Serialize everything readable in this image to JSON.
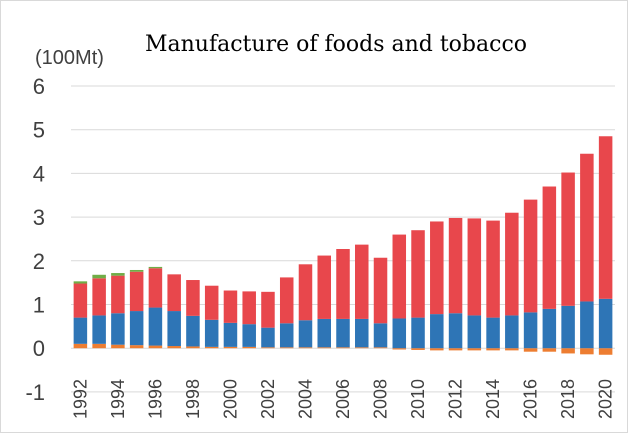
{
  "chart_data": {
    "type": "bar",
    "stacked": true,
    "title": "Manufacture of foods and tobacco",
    "unit_label": "(100Mt)",
    "xlabel": "",
    "ylabel": "",
    "ylim": [
      -1,
      6
    ],
    "yticks": [
      "6",
      "5",
      "4",
      "3",
      "2",
      "1",
      "0",
      "-1"
    ],
    "ytick_values": [
      6,
      5,
      4,
      3,
      2,
      1,
      0,
      -1
    ],
    "grid": true,
    "legend": "none",
    "categories": [
      "1992",
      "1993",
      "1994",
      "1995",
      "1996",
      "1997",
      "1998",
      "1999",
      "2000",
      "2001",
      "2002",
      "2003",
      "2004",
      "2005",
      "2006",
      "2007",
      "2008",
      "2009",
      "2010",
      "2011",
      "2012",
      "2013",
      "2014",
      "2015",
      "2016",
      "2017",
      "2018",
      "2019",
      "2020"
    ],
    "xtick_labels": [
      "1992",
      "1994",
      "1996",
      "1998",
      "2000",
      "2002",
      "2004",
      "2006",
      "2008",
      "2010",
      "2012",
      "2014",
      "2016",
      "2018",
      "2020"
    ],
    "series": [
      {
        "color": "#ed7d31",
        "values": [
          0.1,
          0.1,
          0.08,
          0.07,
          0.06,
          0.05,
          0.04,
          0.03,
          0.03,
          0.03,
          0.02,
          0.02,
          0.02,
          0.02,
          0.02,
          0.02,
          0.02,
          -0.03,
          -0.04,
          -0.05,
          -0.05,
          -0.05,
          -0.05,
          -0.05,
          -0.08,
          -0.08,
          -0.12,
          -0.14,
          -0.15
        ]
      },
      {
        "color": "#2e75b6",
        "values": [
          0.6,
          0.65,
          0.72,
          0.78,
          0.87,
          0.8,
          0.7,
          0.62,
          0.55,
          0.52,
          0.45,
          0.55,
          0.62,
          0.65,
          0.65,
          0.65,
          0.55,
          0.68,
          0.7,
          0.78,
          0.8,
          0.75,
          0.7,
          0.75,
          0.82,
          0.9,
          0.97,
          1.07,
          1.13
        ]
      },
      {
        "color": "#e8474c",
        "values": [
          0.78,
          0.85,
          0.86,
          0.9,
          0.9,
          0.84,
          0.82,
          0.78,
          0.74,
          0.75,
          0.82,
          1.05,
          1.28,
          1.45,
          1.6,
          1.7,
          1.5,
          1.92,
          2.0,
          2.12,
          2.18,
          2.22,
          2.22,
          2.35,
          2.58,
          2.8,
          3.05,
          3.38,
          3.72
        ]
      },
      {
        "color": "#70ad47",
        "values": [
          0.05,
          0.08,
          0.06,
          0.04,
          0.03,
          0,
          0,
          0,
          0,
          0,
          0,
          0,
          0,
          0,
          0,
          0,
          0,
          0,
          0,
          0,
          0,
          0,
          0,
          0,
          0,
          0,
          0,
          0,
          0
        ]
      }
    ]
  }
}
